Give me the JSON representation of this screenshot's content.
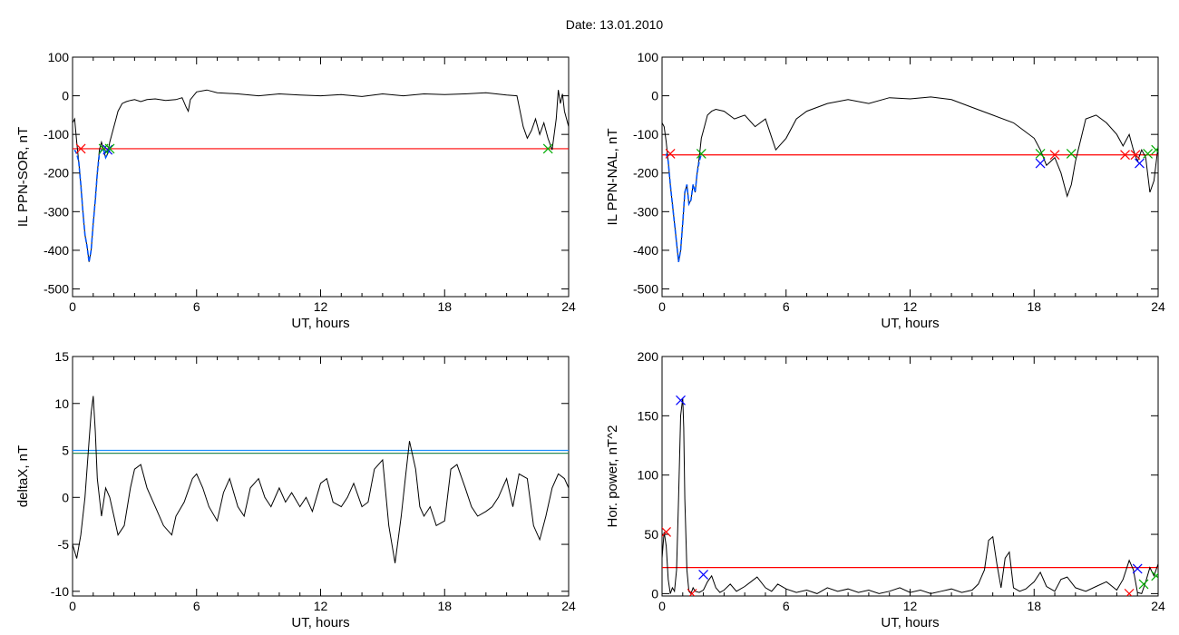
{
  "page_title": "Date:  13.01.2010",
  "chart_data": [
    {
      "type": "line",
      "id": "sor",
      "title": "",
      "xlabel": "UT, hours",
      "ylabel": "IL PPN-SOR, nT",
      "xlim": [
        0,
        24
      ],
      "ylim": [
        -520,
        100
      ],
      "xticks": [
        0,
        6,
        12,
        18,
        24
      ],
      "yticks": [
        -500,
        -400,
        -300,
        -200,
        -100,
        0,
        100
      ],
      "threshold": {
        "value": -137,
        "color": "#ff0000"
      },
      "series": [
        {
          "color": "#000000",
          "x": [
            0,
            0.1,
            0.2,
            0.3,
            0.4,
            0.5,
            0.6,
            0.7,
            0.8,
            0.9,
            1.0,
            1.1,
            1.2,
            1.3,
            1.4,
            1.5,
            1.6,
            1.7,
            1.8,
            1.9,
            2.0,
            2.1,
            2.2,
            2.4,
            2.6,
            2.8,
            3.0,
            3.3,
            3.6,
            4.0,
            4.5,
            5.0,
            5.3,
            5.5,
            5.6,
            5.7,
            6.0,
            6.5,
            7,
            8,
            9,
            10,
            11,
            12,
            13,
            14,
            15,
            16,
            17,
            18,
            19,
            20,
            21,
            21.5,
            21.8,
            22.0,
            22.2,
            22.4,
            22.6,
            22.8,
            23.0,
            23.2,
            23.4,
            23.5,
            23.6,
            23.7,
            23.8,
            23.9,
            24.0
          ],
          "y": [
            -70,
            -60,
            -120,
            -170,
            -230,
            -300,
            -360,
            -390,
            -430,
            -400,
            -330,
            -270,
            -200,
            -140,
            -120,
            -140,
            -160,
            -150,
            -120,
            -100,
            -80,
            -60,
            -40,
            -20,
            -15,
            -12,
            -10,
            -15,
            -10,
            -8,
            -12,
            -10,
            -5,
            -30,
            -40,
            -10,
            10,
            15,
            8,
            5,
            0,
            5,
            2,
            0,
            3,
            -2,
            5,
            0,
            5,
            3,
            5,
            8,
            2,
            0,
            -80,
            -110,
            -90,
            -60,
            -100,
            -70,
            -110,
            -140,
            -60,
            15,
            -20,
            5,
            -40,
            -60,
            -80
          ]
        },
        {
          "color": "#0055ff",
          "x": [
            0.1,
            0.2,
            0.3,
            0.4,
            0.5,
            0.6,
            0.7,
            0.8,
            0.9,
            1.0,
            1.1,
            1.2,
            1.3,
            1.4,
            1.5,
            1.6,
            1.7,
            1.8
          ],
          "y": [
            -140,
            -150,
            -170,
            -230,
            -300,
            -360,
            -390,
            -430,
            -400,
            -330,
            -270,
            -200,
            -150,
            -140,
            -140,
            -160,
            -150,
            -140
          ]
        }
      ],
      "markers": [
        {
          "x": 0.4,
          "y": -137,
          "color": "#ff0000"
        },
        {
          "x": 1.5,
          "y": -137,
          "color": "#00aa00"
        },
        {
          "x": 1.7,
          "y": -140,
          "color": "#0000ff"
        },
        {
          "x": 1.8,
          "y": -137,
          "color": "#00aa00"
        },
        {
          "x": 23.0,
          "y": -137,
          "color": "#00aa00"
        }
      ]
    },
    {
      "type": "line",
      "id": "nal",
      "title": "",
      "xlabel": "UT, hours",
      "ylabel": "IL PPN-NAL, nT",
      "xlim": [
        0,
        24
      ],
      "ylim": [
        -520,
        100
      ],
      "xticks": [
        0,
        6,
        12,
        18,
        24
      ],
      "yticks": [
        -500,
        -400,
        -300,
        -200,
        -100,
        0,
        100
      ],
      "threshold": {
        "value": -153,
        "color": "#ff0000"
      },
      "series": [
        {
          "color": "#000000",
          "x": [
            0,
            0.1,
            0.2,
            0.3,
            0.4,
            0.5,
            0.6,
            0.7,
            0.8,
            0.9,
            1.0,
            1.1,
            1.2,
            1.3,
            1.4,
            1.5,
            1.6,
            1.7,
            1.8,
            1.9,
            2.0,
            2.2,
            2.4,
            2.6,
            3.0,
            3.5,
            4.0,
            4.5,
            5.0,
            5.5,
            6.0,
            6.5,
            7.0,
            8.0,
            9.0,
            10,
            11,
            12,
            13,
            14,
            15,
            16,
            17,
            17.5,
            18.0,
            18.3,
            18.6,
            19.0,
            19.3,
            19.6,
            19.8,
            20.0,
            20.5,
            21.0,
            21.5,
            22.0,
            22.3,
            22.6,
            22.8,
            23.0,
            23.2,
            23.4,
            23.6,
            23.8,
            24.0
          ],
          "y": [
            -70,
            -80,
            -120,
            -170,
            -230,
            -280,
            -330,
            -380,
            -430,
            -400,
            -330,
            -250,
            -230,
            -280,
            -270,
            -230,
            -250,
            -200,
            -160,
            -110,
            -90,
            -50,
            -40,
            -35,
            -40,
            -60,
            -50,
            -80,
            -60,
            -140,
            -110,
            -60,
            -40,
            -20,
            -10,
            -20,
            -5,
            -8,
            -3,
            -10,
            -30,
            -50,
            -70,
            -90,
            -110,
            -140,
            -180,
            -160,
            -200,
            -260,
            -230,
            -170,
            -60,
            -50,
            -70,
            -100,
            -130,
            -100,
            -140,
            -170,
            -140,
            -160,
            -250,
            -220,
            -130
          ]
        },
        {
          "color": "#0055ff",
          "x": [
            0.2,
            0.3,
            0.4,
            0.5,
            0.6,
            0.7,
            0.8,
            0.9,
            1.0,
            1.1,
            1.2,
            1.3,
            1.4,
            1.5,
            1.6,
            1.7,
            1.8,
            1.9
          ],
          "y": [
            -150,
            -170,
            -230,
            -280,
            -330,
            -380,
            -430,
            -400,
            -330,
            -250,
            -230,
            -280,
            -270,
            -230,
            -250,
            -200,
            -170,
            -150
          ]
        }
      ],
      "markers": [
        {
          "x": 0.4,
          "y": -150,
          "color": "#ff0000"
        },
        {
          "x": 1.9,
          "y": -150,
          "color": "#00aa00"
        },
        {
          "x": 18.3,
          "y": -175,
          "color": "#0000ff"
        },
        {
          "x": 18.3,
          "y": -150,
          "color": "#00aa00"
        },
        {
          "x": 19.0,
          "y": -153,
          "color": "#ff0000"
        },
        {
          "x": 19.8,
          "y": -150,
          "color": "#00aa00"
        },
        {
          "x": 22.4,
          "y": -153,
          "color": "#ff0000"
        },
        {
          "x": 22.9,
          "y": -153,
          "color": "#ff0000"
        },
        {
          "x": 23.1,
          "y": -175,
          "color": "#0000ff"
        },
        {
          "x": 23.5,
          "y": -150,
          "color": "#00aa00"
        },
        {
          "x": 23.9,
          "y": -140,
          "color": "#00aa00"
        }
      ]
    },
    {
      "type": "line",
      "id": "deltax",
      "title": "",
      "xlabel": "UT, hours",
      "ylabel": "deltaX, nT",
      "xlim": [
        0,
        24
      ],
      "ylim": [
        -10.5,
        15
      ],
      "xticks": [
        0,
        6,
        12,
        18,
        24
      ],
      "yticks": [
        -10,
        -5,
        0,
        5,
        10,
        15
      ],
      "thresholds": [
        {
          "value": 5.0,
          "color": "#1e90ff"
        },
        {
          "value": 4.7,
          "color": "#2e8b57"
        }
      ],
      "series": [
        {
          "color": "#000000",
          "x": [
            0,
            0.2,
            0.4,
            0.6,
            0.8,
            0.9,
            1.0,
            1.1,
            1.2,
            1.4,
            1.6,
            1.8,
            2.0,
            2.2,
            2.5,
            2.8,
            3.0,
            3.3,
            3.6,
            4.0,
            4.4,
            4.8,
            5.0,
            5.4,
            5.8,
            6.0,
            6.3,
            6.6,
            7.0,
            7.3,
            7.6,
            8.0,
            8.3,
            8.6,
            9.0,
            9.3,
            9.6,
            10.0,
            10.3,
            10.6,
            11.0,
            11.3,
            11.6,
            12.0,
            12.3,
            12.6,
            13.0,
            13.3,
            13.6,
            14.0,
            14.3,
            14.6,
            15.0,
            15.3,
            15.6,
            15.9,
            16.1,
            16.3,
            16.6,
            16.8,
            17.0,
            17.3,
            17.6,
            18.0,
            18.3,
            18.6,
            19.0,
            19.3,
            19.6,
            20.0,
            20.3,
            20.6,
            21.0,
            21.3,
            21.6,
            22.0,
            22.3,
            22.6,
            22.9,
            23.2,
            23.5,
            23.8,
            24.0
          ],
          "y": [
            -5,
            -6.5,
            -4,
            0,
            6,
            9,
            10.8,
            7,
            2,
            -2,
            1,
            0,
            -2,
            -4,
            -3,
            1,
            3,
            3.5,
            1,
            -1,
            -3,
            -4,
            -2,
            -0.5,
            2,
            2.5,
            1,
            -1,
            -2.5,
            0.5,
            2,
            -1,
            -2,
            1,
            2,
            0,
            -1,
            1,
            -0.5,
            0.5,
            -1,
            0,
            -1.5,
            1.5,
            2,
            -0.5,
            -1,
            0,
            1.5,
            -1,
            -0.5,
            3,
            4,
            -3,
            -7,
            -2,
            2,
            6,
            3,
            -1,
            -2,
            -1,
            -3,
            -2.5,
            3,
            3.5,
            1,
            -1,
            -2,
            -1.5,
            -1,
            0,
            2,
            -1,
            2.5,
            2,
            -3,
            -4.5,
            -2,
            1,
            2.5,
            2,
            1
          ]
        }
      ],
      "markers": []
    },
    {
      "type": "line",
      "id": "power",
      "title": "",
      "xlabel": "UT, hours",
      "ylabel": "Hor. power, nT^2",
      "xlim": [
        0,
        24
      ],
      "ylim": [
        -2,
        200
      ],
      "xticks": [
        0,
        6,
        12,
        18,
        24
      ],
      "yticks": [
        0,
        50,
        100,
        150,
        200
      ],
      "threshold": {
        "value": 22,
        "color": "#ff0000"
      },
      "series": [
        {
          "color": "#000000",
          "x": [
            0,
            0.1,
            0.2,
            0.3,
            0.4,
            0.5,
            0.6,
            0.7,
            0.8,
            0.9,
            1.0,
            1.05,
            1.1,
            1.2,
            1.3,
            1.4,
            1.5,
            1.6,
            1.8,
            2.0,
            2.2,
            2.4,
            2.6,
            2.8,
            3.0,
            3.3,
            3.6,
            4.0,
            4.3,
            4.6,
            5.0,
            5.3,
            5.6,
            6.0,
            6.5,
            7.0,
            7.5,
            8.0,
            8.5,
            9.0,
            9.5,
            10.0,
            10.5,
            11.0,
            11.5,
            12.0,
            12.5,
            13.0,
            13.5,
            14.0,
            14.5,
            15.0,
            15.3,
            15.6,
            15.8,
            16.0,
            16.2,
            16.4,
            16.6,
            16.8,
            17.0,
            17.3,
            17.6,
            18.0,
            18.3,
            18.6,
            19.0,
            19.3,
            19.6,
            20.0,
            20.5,
            21.0,
            21.5,
            22.0,
            22.3,
            22.6,
            22.8,
            23.0,
            23.2,
            23.4,
            23.6,
            23.8,
            24.0
          ],
          "y": [
            30,
            52,
            40,
            12,
            0,
            5,
            2,
            20,
            80,
            150,
            165,
            140,
            80,
            20,
            2,
            0,
            5,
            2,
            1,
            3,
            10,
            15,
            5,
            1,
            3,
            8,
            2,
            6,
            10,
            14,
            5,
            2,
            8,
            4,
            1,
            3,
            0,
            5,
            2,
            4,
            1,
            3,
            0,
            2,
            5,
            1,
            3,
            0,
            2,
            4,
            1,
            3,
            8,
            20,
            45,
            48,
            25,
            5,
            30,
            35,
            5,
            2,
            4,
            10,
            18,
            6,
            2,
            12,
            14,
            5,
            2,
            6,
            10,
            3,
            12,
            28,
            20,
            1,
            0,
            10,
            22,
            15,
            25
          ]
        }
      ],
      "markers": [
        {
          "x": 0.2,
          "y": 52,
          "color": "#ff0000"
        },
        {
          "x": 1.45,
          "y": 0,
          "color": "#ff0000"
        },
        {
          "x": 0.9,
          "y": 163,
          "color": "#0000ff"
        },
        {
          "x": 2.0,
          "y": 16,
          "color": "#0000ff"
        },
        {
          "x": 22.6,
          "y": 0,
          "color": "#ff0000"
        },
        {
          "x": 23.0,
          "y": 21,
          "color": "#0000ff"
        },
        {
          "x": 23.3,
          "y": 8,
          "color": "#00aa00"
        },
        {
          "x": 23.9,
          "y": 15,
          "color": "#00aa00"
        }
      ]
    }
  ]
}
